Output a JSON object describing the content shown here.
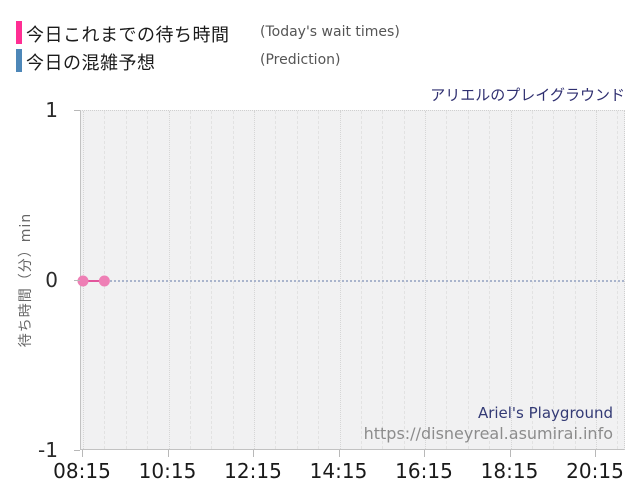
{
  "legend": {
    "items": [
      {
        "jp": "今日これまでの待ち時間",
        "en": "(Today's wait times)",
        "color": "#ff2e93"
      },
      {
        "jp": "今日の混雑予想",
        "en": "(Prediction)",
        "color": "#4d87b8"
      }
    ]
  },
  "watermark": {
    "title_en": "Ariel's Playground",
    "url": "https://disneyreal.asumirai.info"
  },
  "chart_data": {
    "type": "line",
    "title": "アリエルのプレイグラウンド",
    "title_en": "Ariel's Playground",
    "xlabel": "",
    "ylabel": "待ち時間（分）min",
    "ylim": [
      -1,
      1
    ],
    "ytick_values": [
      1,
      0,
      -1
    ],
    "ytick_labels": [
      "1",
      "0",
      "-1"
    ],
    "xtick_labels": [
      "08:15",
      "10:15",
      "12:15",
      "14:15",
      "16:15",
      "18:15",
      "20:15"
    ],
    "x_visible_range": [
      "08:15",
      "20:57"
    ],
    "grid": "on",
    "legend_position": "top-left",
    "plot_background": "#f1f1f2",
    "series": [
      {
        "name": "今日これまでの待ち時間 (Today's wait times)",
        "style": "scatter-line",
        "point_color": "#ee7fb5",
        "line_color": "#e2559c",
        "x": [
          "08:15",
          "08:45"
        ],
        "values": [
          0,
          0
        ]
      },
      {
        "name": "今日の混雑予想 (Prediction)",
        "style": "dotted-line",
        "line_color": "#a9b4cc",
        "x": [
          "08:15",
          "20:57"
        ],
        "values": [
          0,
          0
        ]
      }
    ]
  }
}
